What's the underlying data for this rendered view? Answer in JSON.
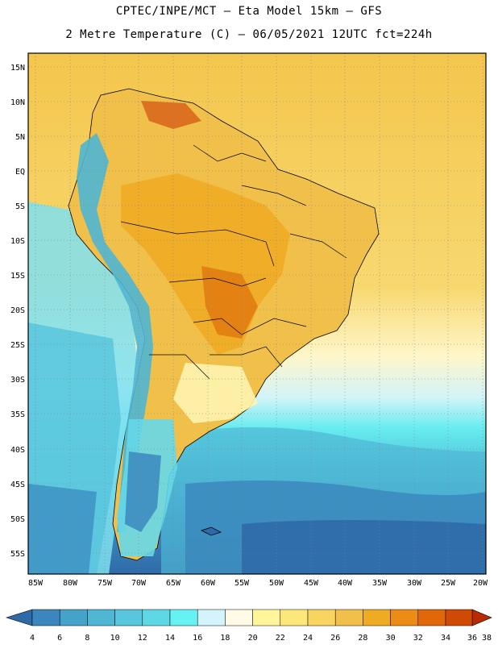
{
  "header": {
    "line1": "CPTEC/INPE/MCT –  Eta Model 15km – GFS",
    "line2": "2 Metre Temperature (C) – 06/05/2021 12UTC fct=224h"
  },
  "lat_labels": [
    "15N",
    "10N",
    "5N",
    "EQ",
    "5S",
    "10S",
    "15S",
    "20S",
    "25S",
    "30S",
    "35S",
    "40S",
    "45S",
    "50S",
    "55S"
  ],
  "lon_labels": [
    "85W",
    "80W",
    "75W",
    "70W",
    "65W",
    "60W",
    "55W",
    "50W",
    "45W",
    "40W",
    "35W",
    "30W",
    "25W",
    "20W"
  ],
  "colorbar": {
    "labels": [
      "4",
      "6",
      "8",
      "10",
      "12",
      "14",
      "16",
      "18",
      "20",
      "22",
      "24",
      "26",
      "28",
      "30",
      "32",
      "34",
      "36",
      "38"
    ],
    "colors": [
      "#2e6aa8",
      "#3a86bd",
      "#45a2c8",
      "#4fb6d4",
      "#58c6dc",
      "#5ed8e4",
      "#66f2f2",
      "#d2f4fa",
      "#fffbe6",
      "#fff59a",
      "#fce77a",
      "#f8d560",
      "#f0c04a",
      "#f0ab24",
      "#ec8c14",
      "#e06808",
      "#cf4a04",
      "#b82a02"
    ]
  }
}
